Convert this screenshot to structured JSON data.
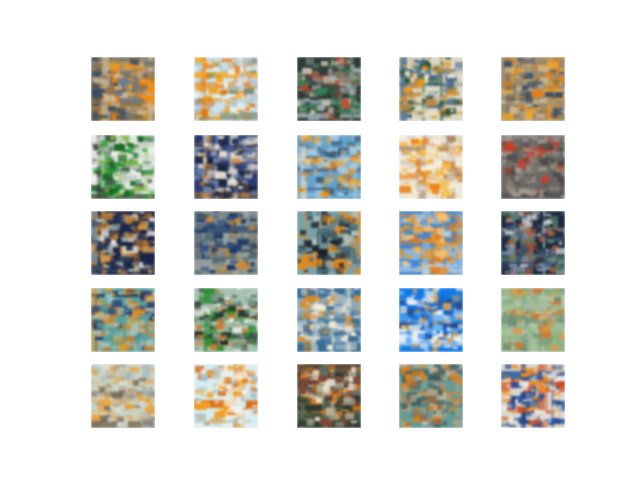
{
  "figure": {
    "background": "#ffffff",
    "rows": 5,
    "cols": 5,
    "tiles": [
      {
        "id": "r1c1",
        "palette": [
          "#8c7350",
          "#d9a03c",
          "#e88c1e",
          "#6e7b8a",
          "#3a4a5e",
          "#c9b89a"
        ]
      },
      {
        "id": "r1c2",
        "palette": [
          "#cfe6f2",
          "#e9f2f5",
          "#f2a62a",
          "#d97a1a",
          "#7d8c78",
          "#b5c7d1"
        ]
      },
      {
        "id": "r1c3",
        "palette": [
          "#2f3a36",
          "#5a6e5c",
          "#b8503a",
          "#9aa9b0",
          "#3d7a55",
          "#c8c2b6"
        ]
      },
      {
        "id": "r1c4",
        "palette": [
          "#d8d8c8",
          "#eae3cf",
          "#e0962a",
          "#2a4c3a",
          "#4a6a88",
          "#b58a52"
        ]
      },
      {
        "id": "r1c5",
        "palette": [
          "#9a8a70",
          "#e8a53a",
          "#d6842a",
          "#5f7082",
          "#3e4e62",
          "#c7b695"
        ]
      },
      {
        "id": "r2c1",
        "palette": [
          "#e9ece8",
          "#2e9a3a",
          "#1d5f2a",
          "#3b3b3b",
          "#c9d0c8",
          "#7fb24a"
        ]
      },
      {
        "id": "r2c2",
        "palette": [
          "#2c3e6e",
          "#d8d2c6",
          "#1a1f2e",
          "#b57a3a",
          "#6a7fa6",
          "#efe8d8"
        ]
      },
      {
        "id": "r2c3",
        "palette": [
          "#6aa2c6",
          "#a9c8dc",
          "#e8a030",
          "#c4742a",
          "#3f5f7a",
          "#d9d2c4"
        ]
      },
      {
        "id": "r2c4",
        "palette": [
          "#ece8dc",
          "#f0c060",
          "#e07f1f",
          "#d9d6cf",
          "#a98a68",
          "#f5efe0"
        ]
      },
      {
        "id": "r2c5",
        "palette": [
          "#6e6a66",
          "#8a857f",
          "#c0402a",
          "#4b4744",
          "#a39b90",
          "#5e6668"
        ]
      },
      {
        "id": "r3c1",
        "palette": [
          "#1c2440",
          "#e6e6e2",
          "#b07a3a",
          "#9aa7a8",
          "#2f3b58",
          "#d9a055"
        ]
      },
      {
        "id": "r3c2",
        "palette": [
          "#7e8a86",
          "#2e4a7a",
          "#1c3560",
          "#a0a6a0",
          "#c58a40",
          "#5a6a70"
        ]
      },
      {
        "id": "r3c3",
        "palette": [
          "#7fa0a8",
          "#b9c4bc",
          "#1a1e26",
          "#d98a2a",
          "#4a6a76",
          "#2e3a44"
        ]
      },
      {
        "id": "r3c4",
        "palette": [
          "#4a86c8",
          "#8cb6de",
          "#e89a32",
          "#f2c27a",
          "#d87a22",
          "#bcd0e0"
        ]
      },
      {
        "id": "r3c5",
        "palette": [
          "#1e2a3c",
          "#7b8ea0",
          "#5a7a6a",
          "#c3c9c8",
          "#3a4e6a",
          "#a65a3a"
        ]
      },
      {
        "id": "r4c1",
        "palette": [
          "#5f9c9c",
          "#9ec5c2",
          "#1e2f5e",
          "#e09a34",
          "#cf7c26",
          "#b8b8a4"
        ]
      },
      {
        "id": "r4c2",
        "palette": [
          "#a9c0b2",
          "#e6ece6",
          "#1c2a26",
          "#3a8a3a",
          "#c97a38",
          "#7a9486"
        ]
      },
      {
        "id": "r4c3",
        "palette": [
          "#3d6b8e",
          "#e8e2d2",
          "#f1ecdc",
          "#d68a2a",
          "#a9bccb",
          "#6f8ea4"
        ]
      },
      {
        "id": "r4c4",
        "palette": [
          "#1e78d6",
          "#6fb0ee",
          "#f0f2f4",
          "#2b4a82",
          "#c9d6e2",
          "#d1a05a"
        ]
      },
      {
        "id": "r4c5",
        "palette": [
          "#8fb08a",
          "#b6c9b0",
          "#c4743a",
          "#d89a52",
          "#a8b8a4",
          "#6e8e74"
        ]
      },
      {
        "id": "r5c1",
        "palette": [
          "#c8d2c8",
          "#a6b6b8",
          "#e2a040",
          "#7a6a5a",
          "#d8ddd6",
          "#b2a48a"
        ]
      },
      {
        "id": "r5c2",
        "palette": [
          "#d6ecf2",
          "#f0f4f0",
          "#e9a030",
          "#c96a20",
          "#aac0c6",
          "#f3e9d3"
        ]
      },
      {
        "id": "r5c3",
        "palette": [
          "#2e3a30",
          "#b8b2a0",
          "#d8802a",
          "#7a4a3a",
          "#efe8d6",
          "#5a6a58"
        ]
      },
      {
        "id": "r5c4",
        "palette": [
          "#6a9a94",
          "#b2a890",
          "#d0802e",
          "#8c6a50",
          "#c4c0ae",
          "#3e5a60"
        ]
      },
      {
        "id": "r5c5",
        "palette": [
          "#d8d8d0",
          "#1c3a7a",
          "#e08a30",
          "#c24a1e",
          "#eceae4",
          "#2a5090"
        ]
      }
    ]
  }
}
